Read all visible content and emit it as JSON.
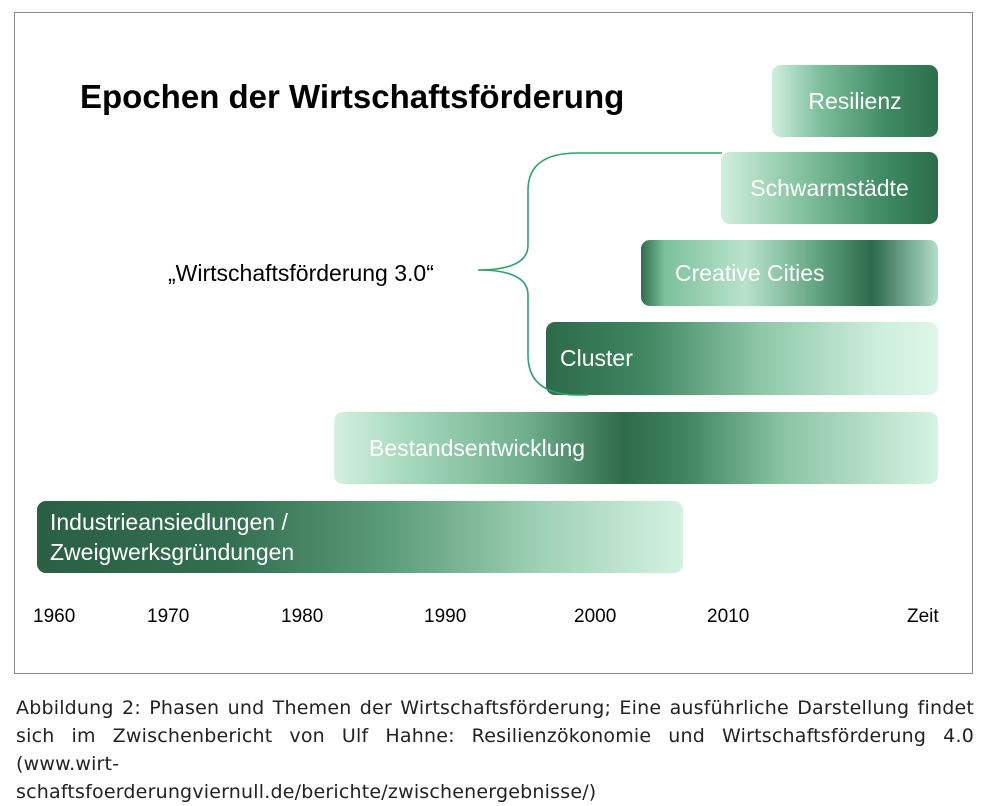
{
  "diagram": {
    "title": "Epochen der Wirtschaftsförderung",
    "bracket_label": "„Wirtschaftsförderung 3.0“",
    "phases": {
      "resilienz": "Resilienz",
      "schwarmstaedte": "Schwarmstädte",
      "creative_cities": "Creative Cities",
      "cluster": "Cluster",
      "bestandsentwicklung": "Bestandsentwicklung",
      "industrie_line1": "Industrieansiedlungen /",
      "industrie_line2": "Zweigwerksgründungen"
    },
    "axis": [
      "1960",
      "1970",
      "1980",
      "1990",
      "2000",
      "2010",
      "Zeit"
    ],
    "colors": {
      "dark_green": "#2d6a4a",
      "light_green": "#d4f0e1",
      "bracket": "#2fa36b"
    }
  },
  "caption": {
    "line1": "Abbildung 2: Phasen und Themen der Wirtschaftsförderung; Eine ausführliche Darstellung findet",
    "line2": "sich im Zwischenbericht von Ulf Hahne: Resilienzökonomie und Wirtschaftsförderung 4.0 (www.wirt-",
    "line3": "schaftsfoerderungviernull.de/berichte/zwischenergebnisse/)"
  }
}
